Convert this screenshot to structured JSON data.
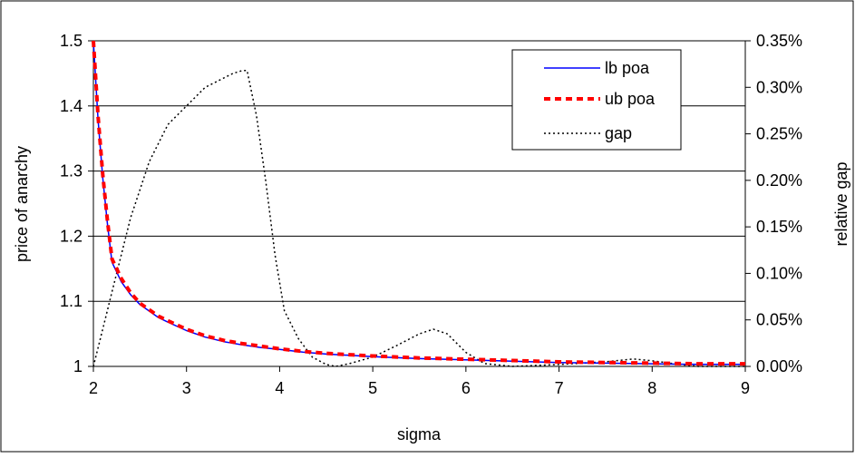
{
  "chart_data": {
    "type": "line",
    "xlabel": "sigma",
    "ylabel": "price of anarchy",
    "y2label": "relative gap",
    "xlim": [
      2,
      9
    ],
    "ylim": [
      1,
      1.5
    ],
    "y2lim": [
      0,
      0.0035
    ],
    "x_ticks": [
      "2",
      "3",
      "4",
      "5",
      "6",
      "7",
      "8",
      "9"
    ],
    "y_ticks": [
      "1",
      "1.1",
      "1.2",
      "1.3",
      "1.4",
      "1.5"
    ],
    "y2_ticks": [
      "0.00%",
      "0.05%",
      "0.10%",
      "0.15%",
      "0.20%",
      "0.25%",
      "0.30%",
      "0.35%"
    ],
    "grid": "horizontal",
    "legend_position": "top-right",
    "series": [
      {
        "name": "lb poa",
        "axis": "left",
        "color": "#0000ff",
        "style": "solid",
        "x": [
          2.0,
          2.05,
          2.1,
          2.15,
          2.2,
          2.3,
          2.4,
          2.5,
          2.6,
          2.7,
          2.8,
          3.0,
          3.2,
          3.4,
          3.6,
          3.8,
          4.0,
          4.25,
          4.5,
          4.75,
          5.0,
          5.5,
          6.0,
          6.5,
          7.0,
          7.5,
          8.0,
          8.5,
          9.0
        ],
        "y": [
          1.5,
          1.38,
          1.29,
          1.22,
          1.16,
          1.13,
          1.11,
          1.095,
          1.085,
          1.075,
          1.068,
          1.055,
          1.045,
          1.038,
          1.033,
          1.029,
          1.026,
          1.022,
          1.019,
          1.017,
          1.015,
          1.012,
          1.01,
          1.008,
          1.006,
          1.005,
          1.004,
          1.003,
          1.003
        ]
      },
      {
        "name": "ub poa",
        "axis": "left",
        "color": "#ff0000",
        "style": "dashed",
        "x": [
          2.0,
          2.05,
          2.1,
          2.15,
          2.2,
          2.3,
          2.4,
          2.5,
          2.6,
          2.7,
          2.8,
          3.0,
          3.2,
          3.4,
          3.6,
          3.8,
          4.0,
          4.25,
          4.5,
          4.75,
          5.0,
          5.5,
          6.0,
          6.5,
          7.0,
          7.5,
          8.0,
          8.5,
          9.0
        ],
        "y": [
          1.5,
          1.385,
          1.295,
          1.225,
          1.165,
          1.135,
          1.113,
          1.097,
          1.087,
          1.077,
          1.07,
          1.057,
          1.047,
          1.04,
          1.035,
          1.031,
          1.027,
          1.023,
          1.02,
          1.018,
          1.016,
          1.013,
          1.011,
          1.009,
          1.007,
          1.006,
          1.005,
          1.004,
          1.004
        ]
      },
      {
        "name": "gap",
        "axis": "right",
        "color": "#000000",
        "style": "dotted",
        "x": [
          2.0,
          2.1,
          2.2,
          2.3,
          2.4,
          2.5,
          2.6,
          2.8,
          3.0,
          3.2,
          3.4,
          3.5,
          3.6,
          3.65,
          3.75,
          3.85,
          3.95,
          4.05,
          4.2,
          4.35,
          4.5,
          4.6,
          4.75,
          5.0,
          5.25,
          5.5,
          5.65,
          5.8,
          6.0,
          6.2,
          6.5,
          7.0,
          7.5,
          7.8,
          8.0,
          8.3,
          8.5,
          9.0
        ],
        "y": [
          0.0,
          0.0004,
          0.0008,
          0.0012,
          0.0016,
          0.0019,
          0.0022,
          0.0026,
          0.0028,
          0.003,
          0.0031,
          0.00315,
          0.00318,
          0.00318,
          0.0027,
          0.002,
          0.0012,
          0.0006,
          0.0003,
          0.0001,
          2e-05,
          0.0,
          3e-05,
          0.0001,
          0.00022,
          0.00035,
          0.0004,
          0.00035,
          0.00015,
          3e-05,
          0.0,
          2e-05,
          5e-05,
          8e-05,
          6e-05,
          2e-05,
          0.0,
          0.0
        ]
      }
    ]
  }
}
